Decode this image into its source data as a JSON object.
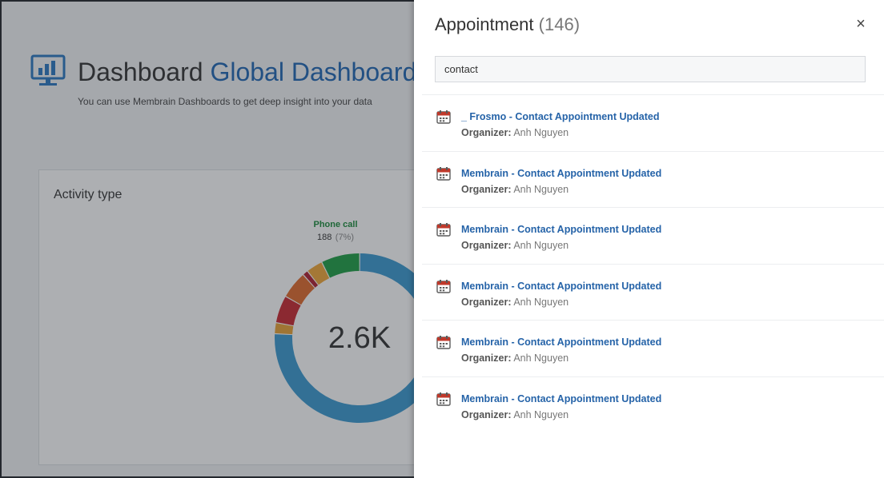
{
  "dashboard": {
    "title_prefix": "Dashboard",
    "title_name": "Global Dashboard",
    "subtitle": "You can use Membrain Dashboards to get deep insight into your data",
    "card": {
      "title": "Activity type",
      "total": "2.6K",
      "hover_label": {
        "name": "Phone call",
        "value": "188",
        "percent": "(7%)"
      }
    }
  },
  "chart_data": {
    "type": "pie",
    "title": "Activity type",
    "center_label": "2.6K",
    "slices": [
      {
        "name": "",
        "fraction": 0.72,
        "color": "#3b9ad0"
      },
      {
        "name": "",
        "fraction": 0.02,
        "color": "#e8a234"
      },
      {
        "name": "",
        "fraction": 0.05,
        "color": "#c9272f"
      },
      {
        "name": "",
        "fraction": 0.05,
        "color": "#e06a2b"
      },
      {
        "name": "",
        "fraction": 0.01,
        "color": "#b0202f"
      },
      {
        "name": "",
        "fraction": 0.03,
        "color": "#f1a637"
      },
      {
        "name": "Phone call",
        "fraction": 0.07,
        "value": 188,
        "color": "#1e9e44"
      }
    ]
  },
  "panel": {
    "title": "Appointment",
    "count": "(146)",
    "close_label": "×",
    "search": {
      "value": "contact",
      "placeholder": ""
    },
    "organizer_label": "Organizer:",
    "results": [
      {
        "title": "_ Frosmo - Contact Appointment Updated",
        "organizer": "Anh Nguyen"
      },
      {
        "title": "Membrain - Contact Appointment Updated",
        "organizer": "Anh Nguyen"
      },
      {
        "title": "Membrain - Contact Appointment Updated",
        "organizer": "Anh Nguyen"
      },
      {
        "title": "Membrain - Contact Appointment Updated",
        "organizer": "Anh Nguyen"
      },
      {
        "title": "Membrain - Contact Appointment Updated",
        "organizer": "Anh Nguyen"
      },
      {
        "title": "Membrain - Contact Appointment Updated",
        "organizer": "Anh Nguyen"
      }
    ]
  },
  "colors": {
    "link": "#2563a8",
    "title_accent": "#1f66b3",
    "calendar_icon": "#c0392b"
  },
  "icons": {
    "dashboard": "monitor-chart-icon",
    "result": "calendar-icon",
    "close": "close-icon"
  }
}
